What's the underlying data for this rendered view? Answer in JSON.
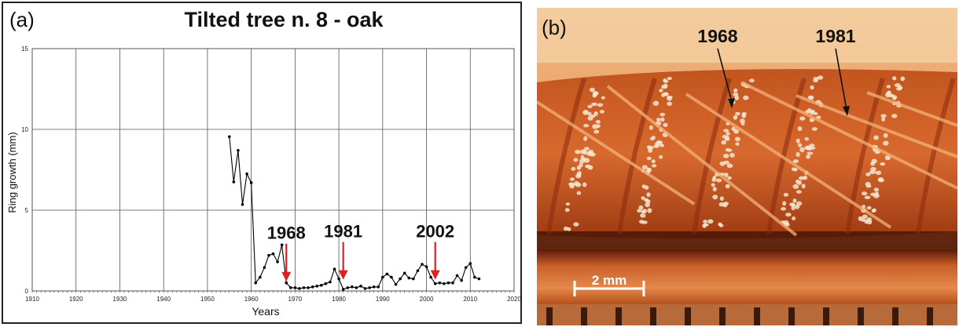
{
  "panel_a": {
    "letter": "(a)",
    "chart_data": {
      "type": "line",
      "title": "Tilted tree n. 8 - oak",
      "xlabel": "Years",
      "ylabel": "Ring growth (mm)",
      "xlim": [
        1910,
        2020
      ],
      "ylim": [
        0,
        15
      ],
      "xticks": [
        1910,
        1920,
        1930,
        1940,
        1950,
        1960,
        1970,
        1980,
        1990,
        2000,
        2010,
        2020
      ],
      "yticks": [
        0,
        5,
        10,
        15
      ],
      "grid": true,
      "series": [
        {
          "color": "#000000",
          "x": [
            1955,
            1956,
            1957,
            1958,
            1959,
            1960,
            1961,
            1962,
            1963,
            1964,
            1965,
            1966,
            1967,
            1968,
            1969,
            1970,
            1971,
            1972,
            1973,
            1974,
            1975,
            1976,
            1977,
            1978,
            1979,
            1980,
            1981,
            1982,
            1983,
            1984,
            1985,
            1986,
            1987,
            1988,
            1989,
            1990,
            1991,
            1992,
            1993,
            1994,
            1995,
            1996,
            1997,
            1998,
            1999,
            2000,
            2001,
            2002,
            2003,
            2004,
            2005,
            2006,
            2007,
            2008,
            2009,
            2010,
            2011,
            2012
          ],
          "y": [
            9.55,
            6.75,
            8.7,
            5.35,
            7.25,
            6.7,
            0.5,
            0.85,
            1.45,
            2.2,
            2.3,
            1.8,
            2.85,
            0.5,
            0.2,
            0.2,
            0.15,
            0.2,
            0.2,
            0.25,
            0.3,
            0.35,
            0.45,
            0.55,
            1.35,
            0.75,
            0.1,
            0.2,
            0.25,
            0.2,
            0.3,
            0.15,
            0.2,
            0.25,
            0.25,
            0.85,
            1.05,
            0.85,
            0.4,
            0.75,
            1.1,
            0.8,
            0.75,
            1.25,
            1.65,
            1.5,
            0.85,
            0.45,
            0.5,
            0.45,
            0.5,
            0.5,
            0.95,
            0.65,
            1.45,
            1.7,
            0.85,
            0.75
          ]
        }
      ],
      "annotations": [
        {
          "label": "1968",
          "x": 1968,
          "y": 0.5,
          "arrow_color": "#e02020"
        },
        {
          "label": "1981",
          "x": 1981,
          "y": 0.6,
          "arrow_color": "#e02020"
        },
        {
          "label": "2002",
          "x": 2002,
          "y": 0.6,
          "arrow_color": "#e02020"
        }
      ]
    }
  },
  "panel_b": {
    "letter": "(b)",
    "labels": [
      "1968",
      "1981"
    ],
    "scale_label": "2 mm",
    "colors": {
      "wood_dark": "#8a2a0e",
      "wood_mid": "#d8622a",
      "wood_light": "#f2b27a",
      "vessel": "#f5e6d0"
    }
  }
}
